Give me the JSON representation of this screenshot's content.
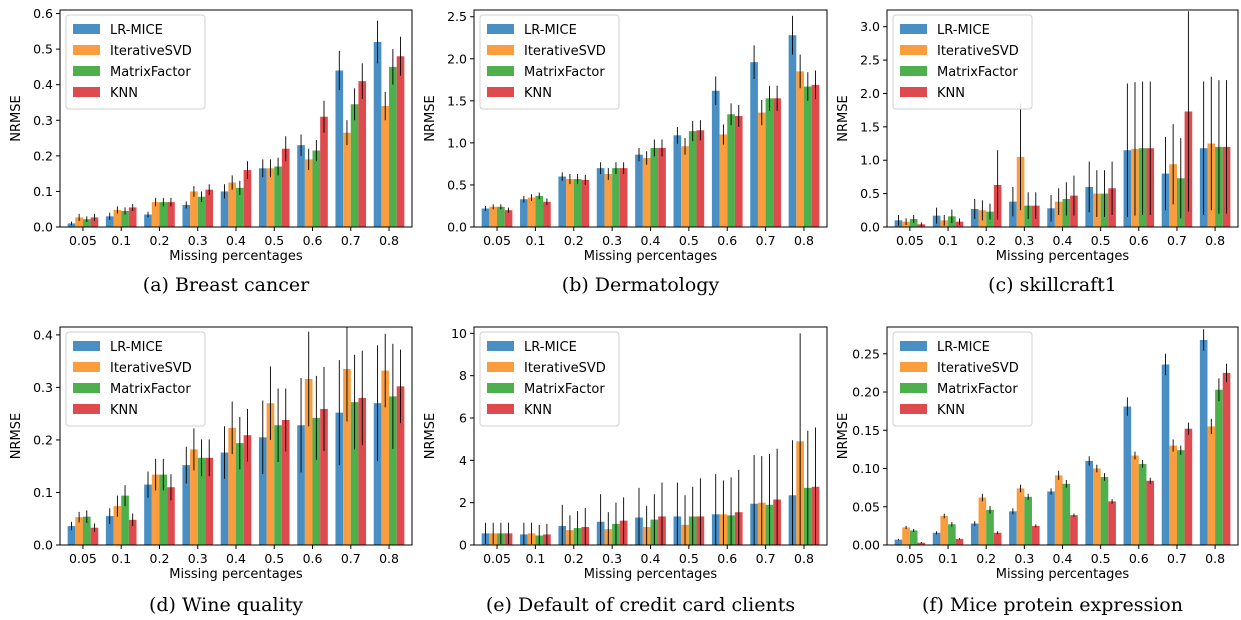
{
  "colors": {
    "LR-MICE": "#4a8fc4",
    "IterativeSVD": "#f99d3e",
    "MatrixFactor": "#4eb04c",
    "KNN": "#df4a4e",
    "errorbar": "#000000"
  },
  "chart_data": [
    {
      "type": "bar",
      "caption": "(a)  Breast cancer",
      "xlabel": "Missing percentages",
      "ylabel": "NRMSE",
      "categories": [
        "0.05",
        "0.1",
        "0.2",
        "0.3",
        "0.4",
        "0.5",
        "0.6",
        "0.7",
        "0.8"
      ],
      "ylim": [
        0,
        0.61
      ],
      "yticks": [
        0.0,
        0.1,
        0.2,
        0.3,
        0.4,
        0.5,
        0.6
      ],
      "ytick_labels": [
        "0.0",
        "0.1",
        "0.2",
        "0.3",
        "0.4",
        "0.5",
        "0.6"
      ],
      "legend_position": "top-left",
      "series": [
        {
          "name": "LR-MICE",
          "values": [
            0.01,
            0.03,
            0.035,
            0.062,
            0.1,
            0.165,
            0.23,
            0.44,
            0.52
          ],
          "errors": [
            0.005,
            0.01,
            0.008,
            0.01,
            0.02,
            0.025,
            0.03,
            0.055,
            0.06
          ]
        },
        {
          "name": "IterativeSVD",
          "values": [
            0.027,
            0.048,
            0.07,
            0.1,
            0.125,
            0.165,
            0.19,
            0.265,
            0.34
          ],
          "errors": [
            0.01,
            0.01,
            0.012,
            0.015,
            0.02,
            0.025,
            0.03,
            0.035,
            0.04
          ]
        },
        {
          "name": "MatrixFactor",
          "values": [
            0.022,
            0.045,
            0.07,
            0.085,
            0.11,
            0.17,
            0.215,
            0.345,
            0.45
          ],
          "errors": [
            0.008,
            0.01,
            0.012,
            0.015,
            0.02,
            0.025,
            0.03,
            0.045,
            0.05
          ]
        },
        {
          "name": "KNN",
          "values": [
            0.027,
            0.055,
            0.07,
            0.105,
            0.16,
            0.22,
            0.31,
            0.41,
            0.48
          ],
          "errors": [
            0.01,
            0.01,
            0.012,
            0.015,
            0.025,
            0.035,
            0.045,
            0.05,
            0.055
          ]
        }
      ]
    },
    {
      "type": "bar",
      "caption": "(b)  Dermatology",
      "xlabel": "Missing percentages",
      "ylabel": "NRMSE",
      "categories": [
        "0.05",
        "0.1",
        "0.2",
        "0.3",
        "0.4",
        "0.5",
        "0.6",
        "0.7",
        "0.8"
      ],
      "ylim": [
        0,
        2.58
      ],
      "yticks": [
        0.0,
        0.5,
        1.0,
        1.5,
        2.0,
        2.5
      ],
      "ytick_labels": [
        "0.0",
        "0.5",
        "1.0",
        "1.5",
        "2.0",
        "2.5"
      ],
      "legend_position": "top-left",
      "series": [
        {
          "name": "LR-MICE",
          "values": [
            0.22,
            0.33,
            0.6,
            0.7,
            0.86,
            1.09,
            1.62,
            1.96,
            2.28
          ],
          "errors": [
            0.03,
            0.04,
            0.05,
            0.07,
            0.08,
            0.1,
            0.17,
            0.2,
            0.23
          ]
        },
        {
          "name": "IterativeSVD",
          "values": [
            0.24,
            0.35,
            0.57,
            0.63,
            0.82,
            0.96,
            1.1,
            1.36,
            1.85
          ],
          "errors": [
            0.03,
            0.04,
            0.06,
            0.07,
            0.08,
            0.1,
            0.12,
            0.15,
            0.2
          ]
        },
        {
          "name": "MatrixFactor",
          "values": [
            0.24,
            0.37,
            0.57,
            0.7,
            0.94,
            1.14,
            1.34,
            1.53,
            1.67
          ],
          "errors": [
            0.03,
            0.04,
            0.06,
            0.07,
            0.1,
            0.12,
            0.13,
            0.15,
            0.17
          ]
        },
        {
          "name": "KNN",
          "values": [
            0.2,
            0.3,
            0.56,
            0.7,
            0.94,
            1.15,
            1.32,
            1.53,
            1.69
          ],
          "errors": [
            0.03,
            0.04,
            0.06,
            0.07,
            0.1,
            0.12,
            0.13,
            0.15,
            0.17
          ]
        }
      ]
    },
    {
      "type": "bar",
      "caption": "(c)  skillcraft1",
      "xlabel": "Missing percentages",
      "ylabel": "NRMSE",
      "categories": [
        "0.05",
        "0.1",
        "0.2",
        "0.3",
        "0.4",
        "0.5",
        "0.6",
        "0.7",
        "0.8"
      ],
      "ylim": [
        0,
        3.25
      ],
      "yticks": [
        0.0,
        0.5,
        1.0,
        1.5,
        2.0,
        2.5,
        3.0
      ],
      "ytick_labels": [
        "0.0",
        "0.5",
        "1.0",
        "1.5",
        "2.0",
        "2.5",
        "3.0"
      ],
      "legend_position": "top-left",
      "series": [
        {
          "name": "LR-MICE",
          "values": [
            0.1,
            0.17,
            0.27,
            0.38,
            0.28,
            0.6,
            1.15,
            0.8,
            1.18
          ],
          "errors": [
            0.08,
            0.12,
            0.15,
            0.22,
            0.2,
            0.38,
            1.0,
            0.55,
            1.0
          ]
        },
        {
          "name": "IterativeSVD",
          "values": [
            0.08,
            0.1,
            0.25,
            1.05,
            0.38,
            0.5,
            1.17,
            0.94,
            1.25
          ],
          "errors": [
            0.05,
            0.08,
            0.15,
            0.8,
            0.2,
            0.35,
            1.0,
            0.6,
            1.0
          ]
        },
        {
          "name": "MatrixFactor",
          "values": [
            0.12,
            0.16,
            0.23,
            0.32,
            0.42,
            0.5,
            1.18,
            0.73,
            1.2
          ],
          "errors": [
            0.06,
            0.1,
            0.12,
            0.2,
            0.25,
            0.35,
            1.0,
            0.6,
            1.0
          ]
        },
        {
          "name": "KNN",
          "values": [
            0.04,
            0.08,
            0.63,
            0.32,
            0.47,
            0.58,
            1.18,
            1.73,
            1.2
          ],
          "errors": [
            0.03,
            0.05,
            0.52,
            0.2,
            0.3,
            0.4,
            1.0,
            1.5,
            1.0
          ]
        }
      ]
    },
    {
      "type": "bar",
      "caption": "(d)  Wine quality",
      "xlabel": "Missing percentages",
      "ylabel": "NRMSE",
      "categories": [
        "0.05",
        "0.1",
        "0.2",
        "0.3",
        "0.4",
        "0.5",
        "0.6",
        "0.7",
        "0.8"
      ],
      "ylim": [
        0,
        0.415
      ],
      "yticks": [
        0.0,
        0.1,
        0.2,
        0.3,
        0.4
      ],
      "ytick_labels": [
        "0.0",
        "0.1",
        "0.2",
        "0.3",
        "0.4"
      ],
      "legend_position": "top-left",
      "series": [
        {
          "name": "LR-MICE",
          "values": [
            0.036,
            0.055,
            0.115,
            0.152,
            0.176,
            0.205,
            0.228,
            0.252,
            0.27
          ],
          "errors": [
            0.008,
            0.015,
            0.025,
            0.035,
            0.05,
            0.07,
            0.09,
            0.1,
            0.11
          ]
        },
        {
          "name": "IterativeSVD",
          "values": [
            0.053,
            0.074,
            0.134,
            0.182,
            0.223,
            0.27,
            0.316,
            0.335,
            0.332
          ],
          "errors": [
            0.01,
            0.02,
            0.03,
            0.04,
            0.05,
            0.07,
            0.09,
            0.1,
            0.07
          ]
        },
        {
          "name": "MatrixFactor",
          "values": [
            0.054,
            0.094,
            0.134,
            0.166,
            0.194,
            0.228,
            0.242,
            0.272,
            0.283
          ],
          "errors": [
            0.012,
            0.02,
            0.03,
            0.035,
            0.05,
            0.07,
            0.08,
            0.09,
            0.1
          ]
        },
        {
          "name": "KNN",
          "values": [
            0.033,
            0.048,
            0.11,
            0.166,
            0.209,
            0.238,
            0.259,
            0.28,
            0.302
          ],
          "errors": [
            0.008,
            0.012,
            0.025,
            0.035,
            0.05,
            0.06,
            0.08,
            0.09,
            0.07
          ]
        }
      ]
    },
    {
      "type": "bar",
      "caption": "(e)  Default of credit card clients",
      "xlabel": "Missing percentages",
      "ylabel": "NRMSE",
      "categories": [
        "0.05",
        "0.1",
        "0.2",
        "0.3",
        "0.4",
        "0.5",
        "0.6",
        "0.7",
        "0.8"
      ],
      "ylim": [
        0,
        10.3
      ],
      "yticks": [
        0,
        2,
        4,
        6,
        8,
        10
      ],
      "ytick_labels": [
        "0",
        "2",
        "4",
        "6",
        "8",
        "10"
      ],
      "legend_position": "top-left",
      "series": [
        {
          "name": "LR-MICE",
          "values": [
            0.55,
            0.5,
            0.9,
            1.1,
            1.3,
            1.35,
            1.45,
            1.95,
            2.35
          ],
          "errors": [
            0.5,
            0.55,
            1.0,
            1.3,
            1.4,
            1.6,
            1.9,
            2.3,
            2.6
          ]
        },
        {
          "name": "IterativeSVD",
          "values": [
            0.55,
            0.55,
            0.7,
            0.75,
            0.85,
            0.95,
            1.45,
            2.0,
            4.9
          ],
          "errors": [
            0.5,
            0.5,
            0.7,
            0.8,
            1.0,
            1.4,
            1.6,
            2.2,
            5.1
          ]
        },
        {
          "name": "MatrixFactor",
          "values": [
            0.55,
            0.45,
            0.8,
            1.0,
            1.2,
            1.35,
            1.4,
            1.9,
            2.7
          ],
          "errors": [
            0.5,
            0.5,
            0.8,
            1.0,
            1.2,
            1.4,
            1.8,
            2.4,
            2.7
          ]
        },
        {
          "name": "KNN",
          "values": [
            0.55,
            0.5,
            0.85,
            1.15,
            1.35,
            1.35,
            1.55,
            2.15,
            2.75
          ],
          "errors": [
            0.5,
            0.5,
            0.9,
            1.1,
            1.6,
            1.8,
            2.0,
            2.4,
            2.8
          ]
        }
      ]
    },
    {
      "type": "bar",
      "caption": "(f)  Mice protein expression",
      "xlabel": "Missing percentages",
      "ylabel": "NRMSE",
      "categories": [
        "0.05",
        "0.1",
        "0.2",
        "0.3",
        "0.4",
        "0.5",
        "0.6",
        "0.7",
        "0.8"
      ],
      "ylim": [
        0,
        0.285
      ],
      "yticks": [
        0.0,
        0.05,
        0.1,
        0.15,
        0.2,
        0.25
      ],
      "ytick_labels": [
        "0.00",
        "0.05",
        "0.10",
        "0.15",
        "0.20",
        "0.25"
      ],
      "legend_position": "top-left",
      "series": [
        {
          "name": "LR-MICE",
          "values": [
            0.007,
            0.016,
            0.028,
            0.044,
            0.07,
            0.11,
            0.181,
            0.236,
            0.268
          ],
          "errors": [
            0.001,
            0.002,
            0.003,
            0.004,
            0.004,
            0.006,
            0.012,
            0.014,
            0.014
          ]
        },
        {
          "name": "IterativeSVD",
          "values": [
            0.023,
            0.038,
            0.062,
            0.074,
            0.091,
            0.1,
            0.117,
            0.13,
            0.155
          ],
          "errors": [
            0.002,
            0.003,
            0.005,
            0.005,
            0.006,
            0.005,
            0.005,
            0.008,
            0.01
          ]
        },
        {
          "name": "MatrixFactor",
          "values": [
            0.019,
            0.027,
            0.046,
            0.063,
            0.08,
            0.089,
            0.106,
            0.124,
            0.203
          ],
          "errors": [
            0.002,
            0.003,
            0.005,
            0.004,
            0.005,
            0.005,
            0.005,
            0.006,
            0.015
          ]
        },
        {
          "name": "KNN",
          "values": [
            0.003,
            0.008,
            0.016,
            0.025,
            0.039,
            0.057,
            0.084,
            0.152,
            0.225
          ],
          "errors": [
            0.001,
            0.001,
            0.002,
            0.002,
            0.002,
            0.003,
            0.004,
            0.008,
            0.012
          ]
        }
      ]
    }
  ]
}
